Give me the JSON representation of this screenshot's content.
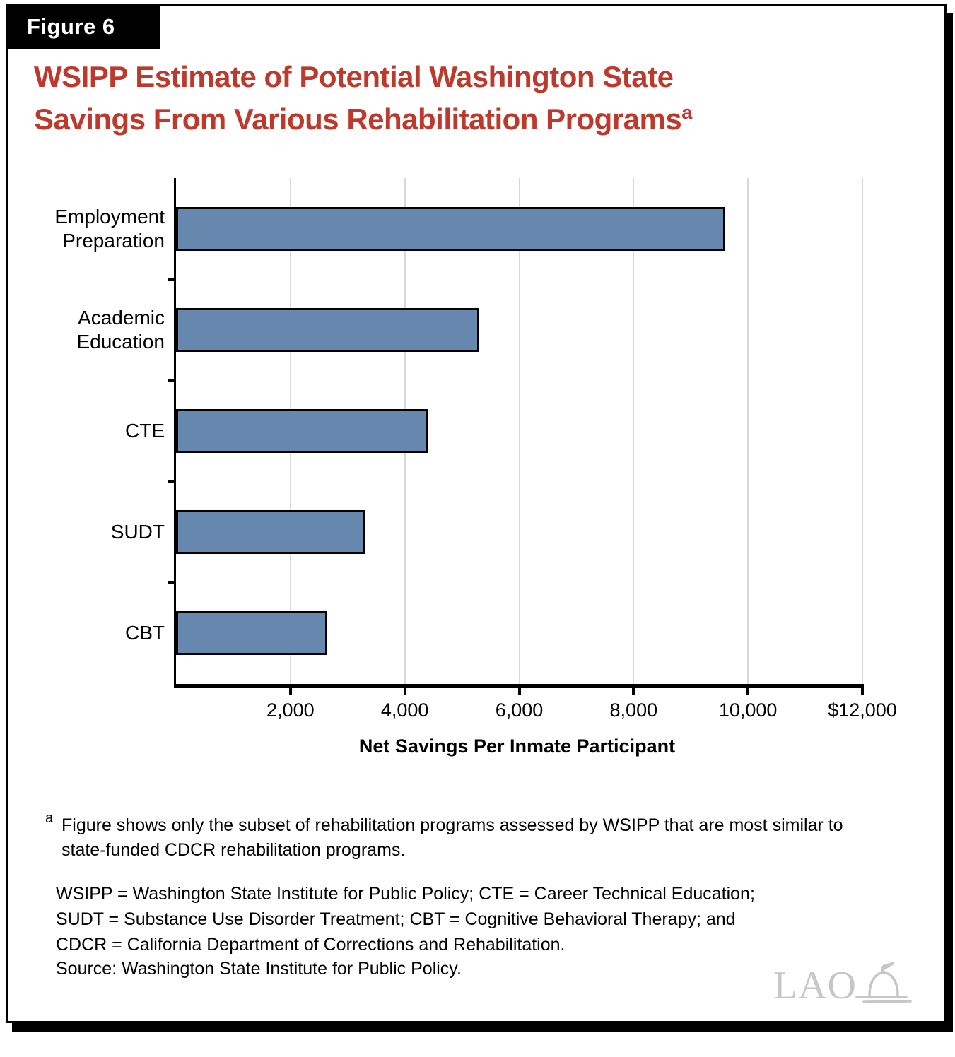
{
  "figure": {
    "label": "Figure 6"
  },
  "title": {
    "line1": "WSIPP Estimate of Potential Washington State",
    "line2": "Savings From Various Rehabilitation Programs",
    "superscript": "a"
  },
  "chart_data": {
    "type": "bar",
    "orientation": "horizontal",
    "categories": [
      "Employment Preparation",
      "Academic Education",
      "CTE",
      "SUDT",
      "CBT"
    ],
    "category_label_lines": [
      [
        "Employment",
        "Preparation"
      ],
      [
        "Academic",
        "Education"
      ],
      [
        "CTE"
      ],
      [
        "SUDT"
      ],
      [
        "CBT"
      ]
    ],
    "values": [
      9600,
      5300,
      4400,
      3300,
      2650
    ],
    "xlabel": "Net Savings Per Inmate Participant",
    "xlim": [
      0,
      12000
    ],
    "xticks": [
      2000,
      4000,
      6000,
      8000,
      10000,
      12000
    ],
    "xtick_labels": [
      "2,000",
      "4,000",
      "6,000",
      "8,000",
      "10,000",
      "$12,000"
    ],
    "grid": "vertical gridlines at x ticks",
    "legend": "none"
  },
  "footnote": {
    "marker": "a",
    "text": "Figure shows only the subset of rehabilitation programs assessed by WSIPP that are most similar to state-funded CDCR rehabilitation programs."
  },
  "abbreviations": [
    "WSIPP = Washington State Institute for Public Policy; CTE = Career Technical Education;",
    "SUDT = Substance Use Disorder Treatment; CBT = Cognitive Behavioral Therapy; and",
    "CDCR = California Department of Corrections and Rehabilitation."
  ],
  "source": "Source: Washington State Institute for Public Policy.",
  "logo": {
    "text": "LAO",
    "icon": "capitol-dome-icon"
  },
  "colors": {
    "title_red": "#bd392b",
    "bar_fill": "#6788ae",
    "bar_border": "#000000",
    "gridline": "#d8d8d8",
    "frame_border": "#000000",
    "tab_background": "#000000",
    "tab_text": "#ffffff",
    "logo_gray": "#c7c7cb"
  }
}
